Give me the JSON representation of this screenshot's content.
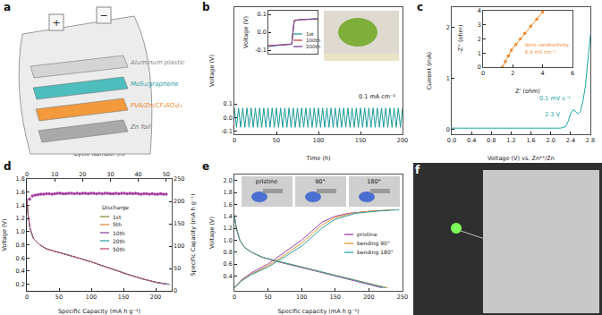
{
  "panel_labels": [
    "a",
    "b",
    "c",
    "d",
    "e",
    "f"
  ],
  "diagram": {
    "layers": [
      "Aluminum plastic",
      "MoS₂/graphene",
      "PVA/Zn(CF₃SO₃)₂",
      "Zn foil"
    ],
    "terminals": [
      "+",
      "−"
    ]
  },
  "photo_labels": [
    "pristine",
    "90°",
    "180°"
  ],
  "chart_data": [
    {
      "type": "line",
      "x_label": "Time (h)",
      "y_label": "Voltage (V)",
      "annotations": [
        "0.1 mA cm⁻²"
      ],
      "xlim": [
        0,
        200
      ],
      "xticks": [
        0,
        50,
        100,
        150,
        200
      ],
      "ylim": [
        -0.12,
        0.8
      ],
      "yticks": [
        -0.1,
        {
          "value": 0,
          "label": "0.0"
        },
        0.1
      ],
      "series": [
        {
          "color": "#1a9a9a",
          "x": [
            0,
            2.5,
            5,
            7.5,
            10,
            12.5,
            15,
            17.5,
            20,
            22.5,
            25,
            27.5,
            30,
            32.5,
            35,
            37.5,
            40,
            42.5,
            45,
            47.5,
            50,
            52.5,
            55,
            57.5,
            60,
            62.5,
            65,
            67.5,
            70,
            72.5,
            75,
            77.5,
            80,
            82.5,
            85,
            87.5,
            90,
            92.5,
            95,
            97.5,
            100,
            102.5,
            105,
            107.5,
            110,
            112.5,
            115,
            117.5,
            120,
            122.5,
            125,
            127.5,
            130,
            132.5,
            135,
            137.5,
            140,
            142.5,
            145,
            147.5,
            150,
            152.5,
            155,
            157.5,
            160,
            162.5,
            165,
            167.5,
            170,
            172.5,
            175,
            177.5,
            180,
            182.5,
            185,
            187.5,
            190,
            192.5,
            195,
            197.5,
            200
          ],
          "values": [
            0.07,
            -0.07,
            0.07,
            -0.07,
            0.07,
            -0.07,
            0.07,
            -0.07,
            0.07,
            -0.07,
            0.07,
            -0.07,
            0.07,
            -0.07,
            0.07,
            -0.07,
            0.07,
            -0.07,
            0.07,
            -0.07,
            0.07,
            -0.07,
            0.07,
            -0.07,
            0.07,
            -0.07,
            0.07,
            -0.07,
            0.07,
            -0.07,
            0.07,
            -0.07,
            0.07,
            -0.07,
            0.07,
            -0.07,
            0.07,
            -0.07,
            0.07,
            -0.07,
            0.07,
            -0.07,
            0.07,
            -0.07,
            0.07,
            -0.07,
            0.07,
            -0.07,
            0.07,
            -0.07,
            0.07,
            -0.07,
            0.07,
            -0.07,
            0.07,
            -0.07,
            0.07,
            -0.07,
            0.07,
            -0.07,
            0.07,
            -0.07,
            0.07,
            -0.07,
            0.07,
            -0.07,
            0.07,
            -0.07,
            0.07,
            -0.07,
            0.07,
            -0.07,
            0.07,
            -0.07,
            0.07,
            -0.07,
            0.07,
            -0.07,
            0.07,
            -0.07,
            0.07
          ]
        }
      ]
    },
    {
      "type": "line",
      "y_label": "Voltage (V)",
      "tick_labels": "y",
      "legend": "lower right",
      "xlim": [
        0,
        4
      ],
      "ylim": [
        -0.12,
        0.12
      ],
      "yticks": [
        -0.1,
        {
          "value": 0,
          "label": "0.0"
        },
        0.1
      ],
      "x": [
        0,
        0.5,
        1,
        1.5,
        1.9,
        2,
        2.1,
        2.5,
        3,
        3.5,
        4
      ],
      "series": [
        {
          "name": "1st",
          "color": "#2b9c9c",
          "values": [
            -0.08,
            -0.075,
            -0.072,
            -0.07,
            -0.068,
            0,
            0.065,
            0.07,
            0.072,
            0.074,
            0.076
          ]
        },
        {
          "name": "100th",
          "color": "#d6404a",
          "values": [
            -0.075,
            -0.072,
            -0.07,
            -0.068,
            -0.066,
            0,
            0.066,
            0.07,
            0.071,
            0.073,
            0.075
          ]
        },
        {
          "name": "200th",
          "color": "#7b3fa0",
          "values": [
            -0.077,
            -0.073,
            -0.071,
            -0.069,
            -0.067,
            0,
            0.064,
            0.069,
            0.071,
            0.072,
            0.074
          ]
        }
      ]
    },
    {
      "type": "line",
      "x_label": "Voltage (V) vs. Zn²⁺/Zn",
      "y_label": "Current (mA)",
      "annotations": [
        "0.1 mV s⁻¹",
        "2.3 V"
      ],
      "xlim": [
        0,
        2.8
      ],
      "xticks": [
        {
          "value": 0,
          "label": "0.0"
        },
        0.4,
        0.8,
        1.2,
        1.6,
        {
          "value": 2,
          "label": "2.0"
        },
        2.4,
        2.8
      ],
      "ylim": [
        -0.1,
        2.4
      ],
      "yticks": [
        0,
        1,
        2
      ],
      "series": [
        {
          "color": "#1aa3a3",
          "x": [
            0,
            0.2,
            0.4,
            0.6,
            0.8,
            1.0,
            1.2,
            1.4,
            1.6,
            1.8,
            2.0,
            2.2,
            2.3,
            2.35,
            2.4,
            2.45,
            2.5,
            2.55,
            2.6,
            2.65,
            2.7,
            2.75,
            2.8
          ],
          "values": [
            0.02,
            0.02,
            0.02,
            0.02,
            0.02,
            0.02,
            0.02,
            0.02,
            0.02,
            0.02,
            0.02,
            0.02,
            0.05,
            0.15,
            0.3,
            0.38,
            0.35,
            0.3,
            0.35,
            0.55,
            0.85,
            1.3,
            1.85
          ]
        }
      ]
    },
    {
      "type": "scatter",
      "marker": "circle",
      "line_style": "solid",
      "x_label": "Z' (ohm)",
      "y_label": "-Z'' (ohm)",
      "annotations": [
        "Ionic conductivity:",
        "6.0 mS cm⁻¹"
      ],
      "xlim": [
        0,
        6
      ],
      "xticks": [
        0,
        2,
        4,
        6
      ],
      "ylim": [
        0,
        4
      ],
      "yticks": [
        0,
        1,
        2,
        3,
        4
      ],
      "series": [
        {
          "color": "#ef8a2a",
          "x": [
            1.3,
            1.5,
            1.7,
            1.9,
            2.2,
            2.5,
            2.8,
            3.2,
            3.6,
            4.0
          ],
          "values": [
            0,
            0.4,
            0.8,
            1.2,
            1.6,
            2.0,
            2.4,
            2.9,
            3.4,
            3.9
          ]
        }
      ]
    },
    {
      "type": "line",
      "x_label": "Specific Capacity (mA h g⁻¹)",
      "y_label": "Voltage (V)",
      "x2_label": "Cycle Number (n)",
      "y2_label": "Specific Capacity (mA h g⁻¹)",
      "legend_title": "Discharge",
      "legend": "center",
      "xlim": [
        0,
        225
      ],
      "xticks": [
        0,
        50,
        100,
        150,
        200
      ],
      "x2lim": [
        0,
        52
      ],
      "x2ticks": [
        0,
        10,
        20,
        30,
        40,
        50
      ],
      "ylim": [
        0.1,
        1.8
      ],
      "yticks": [
        0.2,
        0.4,
        0.6,
        0.8,
        {
          "value": 1,
          "label": "1.0"
        },
        1.2,
        1.4,
        1.6,
        1.8
      ],
      "y2lim": [
        0,
        250
      ],
      "y2ticks": [
        0,
        50,
        100,
        150,
        200,
        250
      ],
      "series": [
        {
          "name": "1st",
          "color": "#8a8a2a",
          "x": [
            0,
            2,
            5,
            10,
            20,
            30,
            40,
            60,
            80,
            100,
            120,
            140,
            160,
            180,
            200,
            218
          ],
          "values": [
            1.5,
            1.25,
            1.05,
            0.9,
            0.8,
            0.74,
            0.71,
            0.66,
            0.6,
            0.54,
            0.47,
            0.4,
            0.34,
            0.28,
            0.23,
            0.2
          ]
        },
        {
          "name": "5th",
          "color": "#e08a3a",
          "x": [
            0,
            2,
            5,
            10,
            20,
            30,
            40,
            60,
            80,
            100,
            120,
            140,
            160,
            180,
            200,
            220
          ],
          "values": [
            1.5,
            1.25,
            1.05,
            0.9,
            0.8,
            0.74,
            0.71,
            0.66,
            0.6,
            0.54,
            0.47,
            0.4,
            0.34,
            0.28,
            0.23,
            0.2
          ]
        },
        {
          "name": "10th",
          "color": "#8a4aa0",
          "x": [
            0,
            2,
            5,
            10,
            20,
            30,
            40,
            60,
            80,
            100,
            120,
            140,
            160,
            180,
            200,
            222
          ],
          "values": [
            1.5,
            1.25,
            1.05,
            0.9,
            0.8,
            0.74,
            0.71,
            0.66,
            0.6,
            0.54,
            0.47,
            0.4,
            0.34,
            0.28,
            0.23,
            0.2
          ]
        },
        {
          "name": "20th",
          "color": "#3aa0a0",
          "x": [
            0,
            2,
            5,
            10,
            20,
            30,
            40,
            60,
            80,
            100,
            120,
            140,
            160,
            180,
            200,
            219
          ],
          "values": [
            1.5,
            1.25,
            1.05,
            0.9,
            0.8,
            0.74,
            0.71,
            0.66,
            0.6,
            0.54,
            0.47,
            0.4,
            0.34,
            0.28,
            0.23,
            0.2
          ]
        },
        {
          "name": "50th",
          "color": "#c0507a",
          "x": [
            0,
            2,
            5,
            10,
            20,
            30,
            40,
            60,
            80,
            100,
            120,
            140,
            160,
            180,
            200,
            216
          ],
          "values": [
            1.5,
            1.25,
            1.05,
            0.9,
            0.8,
            0.74,
            0.71,
            0.66,
            0.6,
            0.54,
            0.47,
            0.4,
            0.34,
            0.28,
            0.23,
            0.2
          ]
        },
        {
          "type": "scatter",
          "marker": "circle",
          "axis": "y2",
          "color": "#a33ea3",
          "x": [
            1,
            2,
            3,
            4,
            5,
            6,
            7,
            8,
            9,
            10,
            11,
            12,
            13,
            14,
            15,
            16,
            17,
            18,
            19,
            20,
            21,
            22,
            23,
            24,
            25,
            26,
            27,
            28,
            29,
            30,
            31,
            32,
            33,
            34,
            35,
            36,
            37,
            38,
            39,
            40,
            41,
            42,
            43,
            44,
            45,
            46,
            47,
            48,
            49,
            50
          ],
          "values": [
            205,
            212,
            214,
            215,
            216,
            216,
            217,
            217,
            216,
            217,
            218,
            218,
            217,
            217,
            218,
            218,
            217,
            218,
            217,
            218,
            218,
            217,
            218,
            218,
            217,
            218,
            217,
            218,
            218,
            217,
            217,
            218,
            217,
            218,
            218,
            217,
            218,
            217,
            218,
            217,
            216,
            217,
            217,
            216,
            217,
            216,
            216,
            217,
            216,
            216
          ]
        }
      ]
    },
    {
      "type": "line",
      "x_label": "Specific capacity (mA h g⁻¹)",
      "y_label": "Voltage (V)",
      "legend": "lower right",
      "xlim": [
        0,
        250
      ],
      "xticks": [
        0,
        50,
        100,
        150,
        200,
        250
      ],
      "ylim": [
        0.15,
        2.1
      ],
      "yticks": [
        0.4,
        0.6,
        0.8,
        {
          "value": 1,
          "label": "1.0"
        },
        1.2,
        1.4,
        1.6,
        1.8,
        {
          "value": 2,
          "label": "2.0"
        }
      ],
      "series": [
        {
          "name": "pristine",
          "color": "#9b3fa8",
          "x": [
            0,
            3,
            8,
            15,
            25,
            40,
            60,
            80,
            100,
            125,
            150,
            175,
            200,
            220,
            null,
            0,
            10,
            25,
            50,
            75,
            100,
            115,
            130,
            150,
            170,
            200,
            230
          ],
          "values": [
            1.4,
            1.2,
            1.0,
            0.88,
            0.8,
            0.72,
            0.65,
            0.6,
            0.54,
            0.47,
            0.4,
            0.33,
            0.26,
            0.2,
            null,
            0.2,
            0.33,
            0.45,
            0.6,
            0.8,
            1.0,
            1.15,
            1.3,
            1.4,
            1.45,
            1.48,
            1.5
          ]
        },
        {
          "name": "bending 90°",
          "color": "#f0922b",
          "x": [
            0,
            3,
            8,
            15,
            25,
            40,
            60,
            80,
            100,
            125,
            150,
            175,
            200,
            228,
            null,
            0,
            10,
            25,
            50,
            75,
            100,
            115,
            130,
            150,
            175,
            205,
            238
          ],
          "values": [
            1.42,
            1.2,
            1.0,
            0.88,
            0.8,
            0.72,
            0.66,
            0.61,
            0.55,
            0.48,
            0.41,
            0.34,
            0.27,
            0.2,
            null,
            0.2,
            0.32,
            0.43,
            0.57,
            0.75,
            0.95,
            1.1,
            1.25,
            1.38,
            1.45,
            1.49,
            1.51
          ]
        },
        {
          "name": "bending 180°",
          "color": "#2aa0a6",
          "x": [
            0,
            3,
            8,
            15,
            25,
            40,
            60,
            80,
            100,
            125,
            150,
            175,
            200,
            225,
            null,
            0,
            10,
            25,
            50,
            75,
            100,
            115,
            130,
            150,
            180,
            215,
            245
          ],
          "values": [
            1.41,
            1.2,
            1.0,
            0.88,
            0.8,
            0.72,
            0.66,
            0.6,
            0.55,
            0.48,
            0.41,
            0.34,
            0.27,
            0.2,
            null,
            0.2,
            0.31,
            0.42,
            0.55,
            0.72,
            0.9,
            1.05,
            1.2,
            1.35,
            1.45,
            1.49,
            1.51
          ]
        }
      ]
    }
  ]
}
